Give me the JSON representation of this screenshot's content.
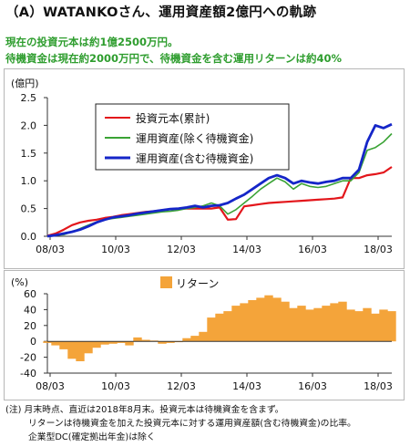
{
  "title": "（A）WATANKOさん、運用資産額2億円への軌跡",
  "subtitle1": "現在の投資元本は約1億2500万円。",
  "subtitle2": "待機資金は現在約2000万円で、待機資金を含む運用リターンは約40%",
  "notes": [
    "(注) 月末時点、直近は2018年8月末。投資元本は待機資金を含まず。",
    "リターンは待機資金を加えた投資元本に対する運用資産額(含む待機資金)の比率。",
    "企業型DC(確定拠出年金)は除く"
  ],
  "colors": {
    "principal": "#e3161b",
    "assets_excl": "#3aa335",
    "assets_incl": "#1526c8",
    "return": "#f4a43a"
  },
  "chart_data": [
    {
      "type": "line",
      "ylabel": "(億円)",
      "ylim": [
        0,
        2.5
      ],
      "yticks": [
        "0.0",
        "0.5",
        "1.0",
        "1.5",
        "2.0",
        "2.5"
      ],
      "xticks": [
        "08/03",
        "10/03",
        "12/03",
        "14/03",
        "16/03",
        "18/03"
      ],
      "x_range": [
        "2008-02",
        "2018-08"
      ],
      "legend_position": "top-center",
      "x": [
        "2008-02",
        "2008-05",
        "2008-08",
        "2008-11",
        "2009-02",
        "2009-05",
        "2009-08",
        "2009-11",
        "2010-02",
        "2010-05",
        "2010-08",
        "2010-11",
        "2011-02",
        "2011-05",
        "2011-08",
        "2011-11",
        "2012-02",
        "2012-05",
        "2012-08",
        "2012-11",
        "2013-02",
        "2013-05",
        "2013-08",
        "2013-11",
        "2014-02",
        "2014-05",
        "2014-08",
        "2014-11",
        "2015-02",
        "2015-05",
        "2015-08",
        "2015-11",
        "2016-02",
        "2016-05",
        "2016-08",
        "2016-11",
        "2017-02",
        "2017-05",
        "2017-08",
        "2017-11",
        "2018-02",
        "2018-05",
        "2018-08"
      ],
      "series": [
        {
          "name": "投資元本(累計)",
          "color": "#e3161b",
          "values": [
            0.01,
            0.05,
            0.12,
            0.2,
            0.25,
            0.28,
            0.3,
            0.33,
            0.35,
            0.38,
            0.4,
            0.42,
            0.44,
            0.45,
            0.47,
            0.49,
            0.5,
            0.5,
            0.5,
            0.5,
            0.5,
            0.52,
            0.3,
            0.31,
            0.54,
            0.56,
            0.58,
            0.6,
            0.61,
            0.62,
            0.63,
            0.64,
            0.65,
            0.66,
            0.67,
            0.68,
            0.7,
            1.05,
            1.05,
            1.1,
            1.12,
            1.15,
            1.25
          ]
        },
        {
          "name": "運用資産(除く待機資金)",
          "color": "#3aa335",
          "values": [
            0.0,
            0.02,
            0.03,
            0.08,
            0.14,
            0.2,
            0.26,
            0.3,
            0.32,
            0.34,
            0.36,
            0.38,
            0.4,
            0.42,
            0.44,
            0.45,
            0.47,
            0.5,
            0.52,
            0.55,
            0.6,
            0.55,
            0.4,
            0.48,
            0.6,
            0.72,
            0.85,
            0.95,
            1.05,
            0.98,
            0.85,
            0.95,
            0.9,
            0.88,
            0.9,
            0.95,
            1.0,
            1.0,
            1.15,
            1.55,
            1.6,
            1.7,
            1.85
          ]
        },
        {
          "name": "運用資産(含む待機資金)",
          "color": "#1526c8",
          "values": [
            0.0,
            0.02,
            0.05,
            0.08,
            0.12,
            0.18,
            0.25,
            0.3,
            0.34,
            0.36,
            0.38,
            0.41,
            0.43,
            0.45,
            0.47,
            0.49,
            0.5,
            0.52,
            0.55,
            0.52,
            0.55,
            0.56,
            0.6,
            0.68,
            0.75,
            0.85,
            0.95,
            1.05,
            1.1,
            1.05,
            0.95,
            1.0,
            0.97,
            0.95,
            0.98,
            1.0,
            1.05,
            1.05,
            1.2,
            1.7,
            2.0,
            1.95,
            2.02
          ]
        }
      ]
    },
    {
      "type": "bar",
      "ylabel": "(%)",
      "ylim": [
        -40,
        60
      ],
      "yticks": [
        "60",
        "40",
        "20",
        "0",
        "-20",
        "-40"
      ],
      "xticks": [
        "08/03",
        "10/03",
        "12/03",
        "14/03",
        "16/03",
        "18/03"
      ],
      "legend_position": "top-center",
      "series": [
        {
          "name": "リターン",
          "color": "#f4a43a",
          "x": [
            "2008-02",
            "2008-05",
            "2008-08",
            "2008-11",
            "2009-02",
            "2009-05",
            "2009-08",
            "2009-11",
            "2010-02",
            "2010-05",
            "2010-08",
            "2010-11",
            "2011-02",
            "2011-05",
            "2011-08",
            "2011-11",
            "2012-02",
            "2012-05",
            "2012-08",
            "2012-11",
            "2013-02",
            "2013-05",
            "2013-08",
            "2013-11",
            "2014-02",
            "2014-05",
            "2014-08",
            "2014-11",
            "2015-02",
            "2015-05",
            "2015-08",
            "2015-11",
            "2016-02",
            "2016-05",
            "2016-08",
            "2016-11",
            "2017-02",
            "2017-05",
            "2017-08",
            "2017-11",
            "2018-02",
            "2018-05",
            "2018-08"
          ],
          "values": [
            -2,
            -5,
            -10,
            -22,
            -25,
            -15,
            -8,
            -4,
            -3,
            -2,
            -5,
            5,
            2,
            1,
            -3,
            -2,
            -1,
            4,
            7,
            12,
            30,
            35,
            38,
            45,
            48,
            52,
            55,
            58,
            55,
            50,
            42,
            45,
            40,
            42,
            45,
            48,
            50,
            40,
            38,
            42,
            35,
            40,
            38
          ]
        }
      ]
    }
  ]
}
